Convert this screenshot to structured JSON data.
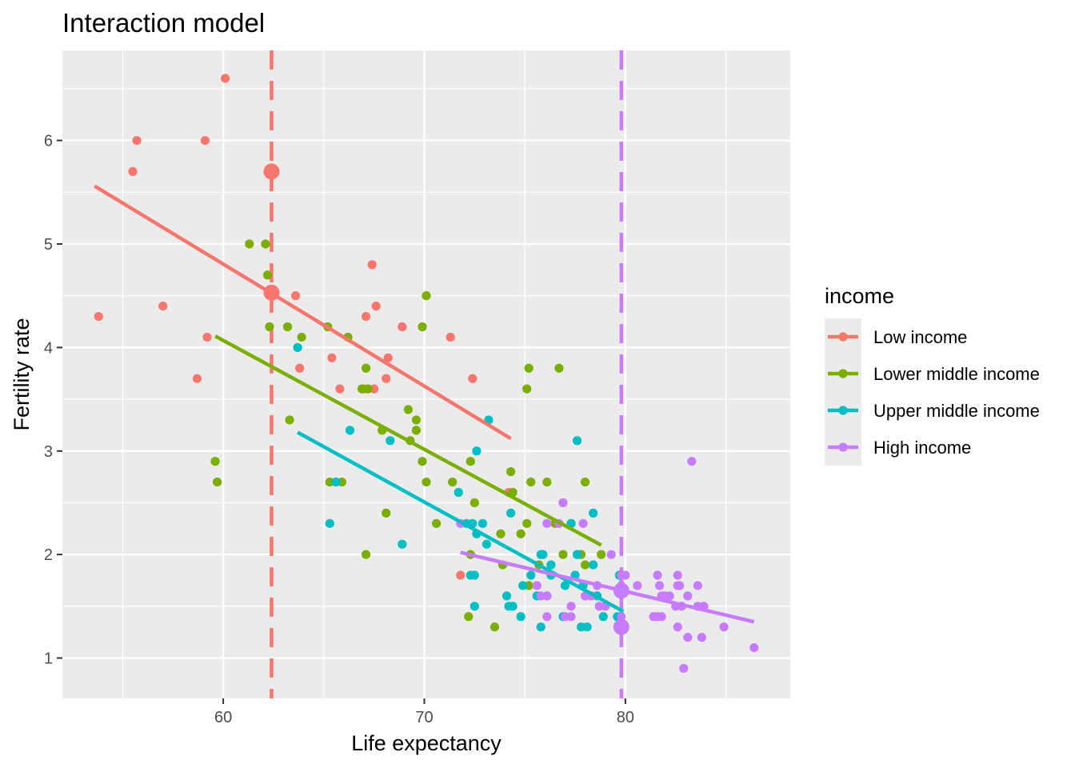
{
  "chart_data": {
    "type": "scatter",
    "title": "Interaction model",
    "xlabel": "Life expectancy",
    "ylabel": "Fertility rate",
    "xlim": [
      52,
      88.2
    ],
    "ylim": [
      0.61,
      6.87
    ],
    "x_ticks": [
      60,
      70,
      80
    ],
    "y_ticks": [
      1,
      2,
      3,
      4,
      5,
      6
    ],
    "grid": true,
    "legend": {
      "title": "income",
      "placement": "right"
    },
    "series": [
      {
        "name": "Low income",
        "color": "#F8766D",
        "points": [
          [
            53.8,
            4.3
          ],
          [
            55.5,
            5.7
          ],
          [
            55.7,
            6.0
          ],
          [
            57.0,
            4.4
          ],
          [
            58.7,
            3.7
          ],
          [
            59.1,
            6.0
          ],
          [
            59.2,
            4.1
          ],
          [
            60.1,
            6.6
          ],
          [
            62.5,
            4.5
          ],
          [
            63.6,
            4.5
          ],
          [
            63.8,
            3.8
          ],
          [
            65.4,
            3.9
          ],
          [
            65.8,
            3.6
          ],
          [
            67.0,
            3.6
          ],
          [
            67.1,
            4.3
          ],
          [
            67.4,
            4.8
          ],
          [
            67.5,
            3.6
          ],
          [
            67.6,
            4.4
          ],
          [
            68.1,
            3.7
          ],
          [
            68.2,
            3.9
          ],
          [
            68.9,
            4.2
          ],
          [
            71.3,
            4.1
          ],
          [
            71.8,
            1.8
          ],
          [
            72.4,
            3.7
          ],
          [
            74.2,
            2.6
          ]
        ],
        "fit": {
          "x": [
            53.6,
            74.3
          ],
          "y": [
            5.56,
            3.12
          ]
        },
        "reference_x": 62.4,
        "fit_markers": [
          [
            62.4,
            5.7
          ],
          [
            62.4,
            4.53
          ]
        ]
      },
      {
        "name": "Lower middle income",
        "color": "#7CAE00",
        "points": [
          [
            59.6,
            2.9
          ],
          [
            59.7,
            2.7
          ],
          [
            61.3,
            5.0
          ],
          [
            62.1,
            5.0
          ],
          [
            62.2,
            4.7
          ],
          [
            62.3,
            4.2
          ],
          [
            63.2,
            4.2
          ],
          [
            63.3,
            3.3
          ],
          [
            63.9,
            4.1
          ],
          [
            65.2,
            4.2
          ],
          [
            65.3,
            2.7
          ],
          [
            65.9,
            2.7
          ],
          [
            66.2,
            4.1
          ],
          [
            66.9,
            3.6
          ],
          [
            67.1,
            3.8
          ],
          [
            67.2,
            3.6
          ],
          [
            67.1,
            2.0
          ],
          [
            67.9,
            3.2
          ],
          [
            68.1,
            2.4
          ],
          [
            69.2,
            3.4
          ],
          [
            69.3,
            3.1
          ],
          [
            69.6,
            3.3
          ],
          [
            69.6,
            3.2
          ],
          [
            69.9,
            2.9
          ],
          [
            69.9,
            4.2
          ],
          [
            70.1,
            2.7
          ],
          [
            70.1,
            4.5
          ],
          [
            70.6,
            2.3
          ],
          [
            71.4,
            2.7
          ],
          [
            72.2,
            1.4
          ],
          [
            72.3,
            2.9
          ],
          [
            72.3,
            2.0
          ],
          [
            72.5,
            2.5
          ],
          [
            73.5,
            1.3
          ],
          [
            73.8,
            2.2
          ],
          [
            73.9,
            1.9
          ],
          [
            74.3,
            2.8
          ],
          [
            74.4,
            2.6
          ],
          [
            74.8,
            2.2
          ],
          [
            75.1,
            2.3
          ],
          [
            75.2,
            1.7
          ],
          [
            75.1,
            3.6
          ],
          [
            75.2,
            3.8
          ],
          [
            75.3,
            2.7
          ],
          [
            75.7,
            1.9
          ],
          [
            76.1,
            2.7
          ],
          [
            76.5,
            2.3
          ],
          [
            76.7,
            3.8
          ],
          [
            76.9,
            2.0
          ],
          [
            77.3,
            2.3
          ],
          [
            77.8,
            2.0
          ],
          [
            78.0,
            1.9
          ],
          [
            78.0,
            2.7
          ],
          [
            78.8,
            2.0
          ]
        ],
        "fit": {
          "x": [
            59.6,
            78.8
          ],
          "y": [
            4.11,
            2.09
          ]
        }
      },
      {
        "name": "Upper middle income",
        "color": "#00BFC4",
        "points": [
          [
            63.7,
            4.0
          ],
          [
            65.3,
            2.3
          ],
          [
            65.6,
            2.7
          ],
          [
            66.3,
            3.2
          ],
          [
            68.9,
            2.1
          ],
          [
            68.3,
            3.1
          ],
          [
            71.7,
            2.6
          ],
          [
            72.1,
            2.3
          ],
          [
            72.3,
            1.8
          ],
          [
            72.4,
            2.3
          ],
          [
            72.5,
            1.5
          ],
          [
            72.5,
            1.8
          ],
          [
            72.6,
            2.2
          ],
          [
            72.6,
            3.0
          ],
          [
            72.9,
            2.3
          ],
          [
            73.1,
            2.1
          ],
          [
            73.2,
            3.3
          ],
          [
            74.1,
            1.6
          ],
          [
            74.2,
            1.5
          ],
          [
            74.3,
            2.4
          ],
          [
            74.4,
            1.5
          ],
          [
            74.8,
            1.4
          ],
          [
            74.9,
            1.7
          ],
          [
            75.3,
            1.8
          ],
          [
            75.6,
            1.6
          ],
          [
            75.8,
            2.0
          ],
          [
            75.8,
            1.3
          ],
          [
            75.9,
            2.0
          ],
          [
            76.1,
            1.6
          ],
          [
            76.3,
            1.8
          ],
          [
            76.3,
            1.9
          ],
          [
            76.9,
            1.4
          ],
          [
            77.0,
            1.7
          ],
          [
            77.3,
            2.3
          ],
          [
            77.5,
            1.8
          ],
          [
            77.6,
            3.1
          ],
          [
            77.6,
            2.0
          ],
          [
            77.8,
            1.3
          ],
          [
            77.9,
            1.7
          ],
          [
            78.1,
            1.3
          ],
          [
            78.3,
            1.6
          ],
          [
            78.4,
            1.9
          ],
          [
            78.4,
            2.4
          ],
          [
            78.6,
            1.6
          ],
          [
            78.9,
            1.4
          ],
          [
            79.6,
            1.4
          ],
          [
            79.7,
            1.8
          ]
        ],
        "fit": {
          "x": [
            63.7,
            79.9
          ],
          "y": [
            3.18,
            1.45
          ]
        }
      },
      {
        "name": "High income",
        "color": "#C77CFF",
        "points": [
          [
            71.8,
            2.3
          ],
          [
            75.6,
            1.7
          ],
          [
            75.8,
            1.6
          ],
          [
            76.1,
            1.6
          ],
          [
            76.1,
            2.3
          ],
          [
            76.1,
            1.4
          ],
          [
            76.7,
            2.3
          ],
          [
            76.9,
            2.5
          ],
          [
            77.0,
            1.4
          ],
          [
            77.3,
            1.5
          ],
          [
            77.3,
            1.4
          ],
          [
            77.9,
            2.3
          ],
          [
            78.0,
            1.6
          ],
          [
            78.3,
            1.6
          ],
          [
            78.6,
            1.7
          ],
          [
            78.7,
            1.5
          ],
          [
            79.0,
            1.5
          ],
          [
            79.3,
            2.0
          ],
          [
            79.8,
            1.4
          ],
          [
            79.8,
            1.7
          ],
          [
            79.8,
            1.8
          ],
          [
            80.0,
            1.8
          ],
          [
            80.6,
            1.7
          ],
          [
            81.4,
            1.4
          ],
          [
            81.6,
            1.4
          ],
          [
            81.6,
            1.8
          ],
          [
            81.7,
            1.7
          ],
          [
            81.8,
            1.6
          ],
          [
            81.8,
            1.4
          ],
          [
            82.0,
            1.6
          ],
          [
            82.2,
            1.6
          ],
          [
            82.5,
            1.5
          ],
          [
            82.6,
            1.8
          ],
          [
            82.6,
            1.7
          ],
          [
            82.6,
            1.3
          ],
          [
            82.7,
            1.7
          ],
          [
            82.8,
            1.5
          ],
          [
            82.9,
            0.9
          ],
          [
            83.1,
            1.6
          ],
          [
            83.1,
            1.2
          ],
          [
            83.3,
            2.9
          ],
          [
            83.6,
            1.5
          ],
          [
            83.6,
            1.7
          ],
          [
            83.8,
            1.2
          ],
          [
            83.9,
            1.5
          ],
          [
            84.9,
            1.3
          ],
          [
            86.4,
            1.1
          ]
        ],
        "fit": {
          "x": [
            71.8,
            86.4
          ],
          "y": [
            2.02,
            1.35
          ]
        },
        "reference_x": 79.8,
        "fit_markers": [
          [
            79.8,
            1.65
          ],
          [
            79.8,
            1.3
          ]
        ]
      }
    ]
  }
}
